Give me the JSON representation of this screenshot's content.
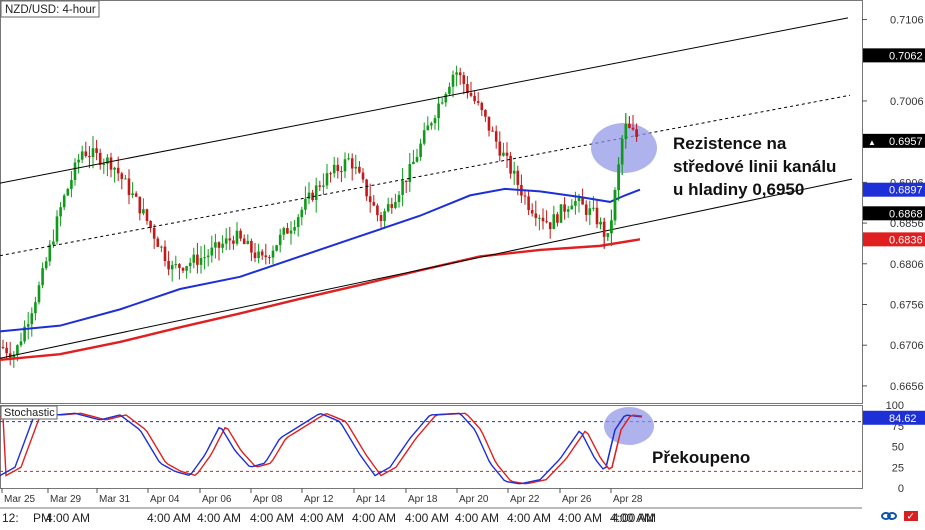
{
  "chart_data": [
    {
      "type": "candlestick",
      "title": "NZD/USD: 4-hour",
      "y_range": [
        0.6635,
        0.713
      ],
      "y_ticks": [
        0.7106,
        0.7006,
        0.6906,
        0.6856,
        0.6806,
        0.6756,
        0.6706,
        0.6656
      ],
      "y_tick_labels": [
        "0.7106",
        "0.7006",
        "0.6906",
        "0.6856",
        "0.6806",
        "0.6756",
        "0.6706",
        "0.6656"
      ],
      "price_badges": [
        {
          "value": 0.7062,
          "label": "0.7062",
          "color": "#000000"
        },
        {
          "value": 0.6957,
          "label": "0.6957",
          "color": "#000000",
          "marker": "▲"
        },
        {
          "value": 0.6897,
          "label": "0.6897",
          "color": "#1d2fd6"
        },
        {
          "value": 0.6868,
          "label": "0.6868",
          "color": "#000000"
        },
        {
          "value": 0.6836,
          "label": "0.6836",
          "color": "#e02020"
        }
      ],
      "date_labels": [
        "Mar 25",
        "Mar 29",
        "Mar 31",
        "Apr 04",
        "Apr 06",
        "Apr 08",
        "Apr 12",
        "Apr 14",
        "Apr 18",
        "Apr 20",
        "Apr 22",
        "Apr 26",
        "Apr 28"
      ],
      "time_labels": [
        "12:",
        "PM",
        "4:00 AM",
        "4:00 AM",
        "4:00 AM",
        "4:00 AM",
        "4:00 AM",
        "4:00 AM",
        "4:00 AM",
        "4:00 AM",
        "4:00 AM",
        "4:00 AM",
        "4:00 AM",
        "4:00 AM"
      ],
      "moving_averages": [
        {
          "color": "#1d2fd6",
          "last_value": 0.6897
        },
        {
          "color": "#e02020",
          "last_value": 0.6836
        }
      ],
      "channel": {
        "upper_color": "#000000",
        "middle_style": "dotted",
        "lower_color": "#000000"
      },
      "annotation": "Rezistence na\nstředové linii kanálu\nu hladiny 0,6950",
      "highlight_color": "#8f94e6"
    },
    {
      "type": "line",
      "title": "Stochastic",
      "y_range": [
        0,
        100
      ],
      "y_ticks": [
        0,
        25,
        50,
        75,
        100
      ],
      "y_tick_labels": [
        "0",
        "25",
        "50",
        "75",
        "100"
      ],
      "levels": [
        80,
        20
      ],
      "current_value": 84.62,
      "current_label": "84.62",
      "series_colors": [
        "#1d2fd6",
        "#e02020"
      ],
      "annotation": "Překoupeno"
    }
  ],
  "icons": [
    "link-icon",
    "flag-icon"
  ]
}
